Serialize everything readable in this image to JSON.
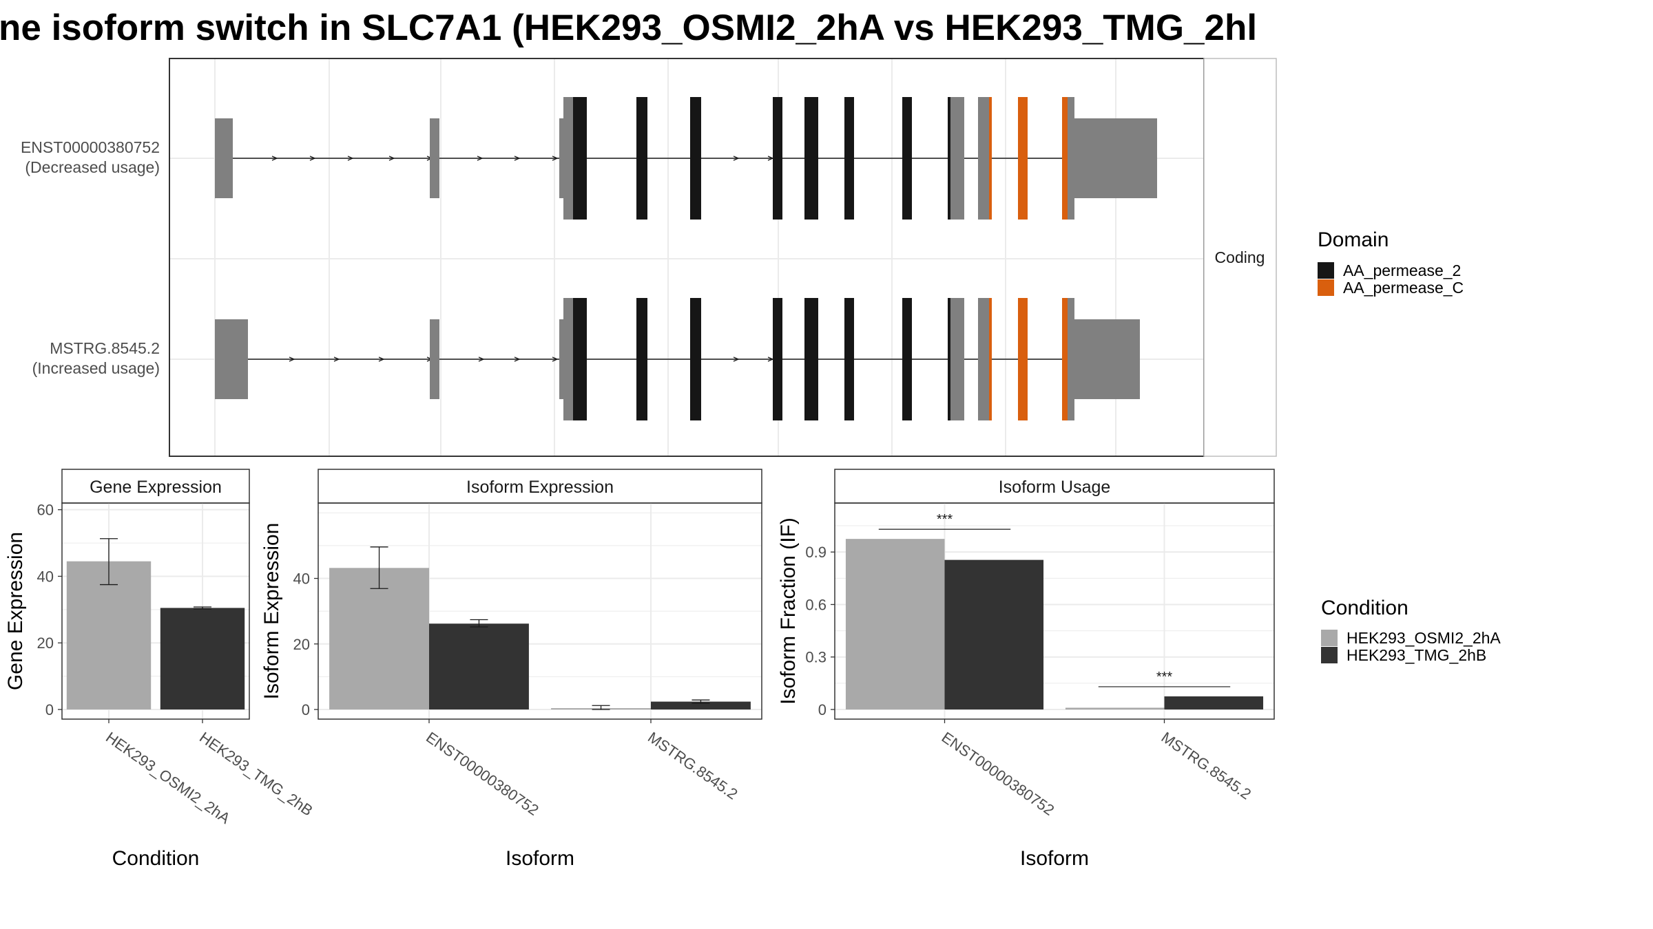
{
  "title": "ne isoform switch in SLC7A1 (HEK293_OSMI2_2hA vs HEK293_TMG_2hl",
  "colors": {
    "AA_permease_2": "#161616",
    "AA_permease_C": "#d95f0e",
    "utr": "#808080",
    "cond_A": "#a9a9a9",
    "cond_B": "#333333",
    "grid": "#ebebeb",
    "frame": "#333333"
  },
  "structure": {
    "strip_label": "Coding",
    "isoforms": [
      {
        "id": "ENST00000380752",
        "usage": "(Decreased usage)"
      },
      {
        "id": "MSTRG.8545.2",
        "usage": "(Increased usage)"
      }
    ]
  },
  "domain_legend": {
    "title": "Domain",
    "items": [
      {
        "label": "AA_permease_2",
        "color": "#161616"
      },
      {
        "label": "AA_permease_C",
        "color": "#d95f0e"
      }
    ]
  },
  "condition_legend": {
    "title": "Condition",
    "items": [
      {
        "label": "HEK293_OSMI2_2hA",
        "color": "#a9a9a9"
      },
      {
        "label": "HEK293_TMG_2hB",
        "color": "#333333"
      }
    ]
  },
  "chart_data": [
    {
      "type": "bar",
      "title": "Gene Expression",
      "xlabel": "Condition",
      "ylabel": "Gene Expression",
      "ylim": [
        0,
        62
      ],
      "yticks": [
        0,
        20,
        40,
        60
      ],
      "categories": [
        "HEK293_OSMI2_2hA",
        "HEK293_TMG_2hB"
      ],
      "values": [
        44.5,
        30.5
      ],
      "errors": [
        [
          37.5,
          51.3
        ],
        [
          30.2,
          30.8
        ]
      ],
      "grid": true
    },
    {
      "type": "bar",
      "title": "Isoform Expression",
      "xlabel": "Isoform",
      "ylabel": "Isoform Expression",
      "ylim": [
        0,
        63
      ],
      "yticks": [
        0,
        20,
        40
      ],
      "categories": [
        "ENST00000380752",
        "MSTRG.8545.2"
      ],
      "series": [
        {
          "name": "HEK293_OSMI2_2hA",
          "values": [
            43.2,
            0.4
          ],
          "errors": [
            [
              36.9,
              49.6
            ],
            [
              0.0,
              1.2
            ]
          ]
        },
        {
          "name": "HEK293_TMG_2hB",
          "values": [
            26.2,
            2.4
          ],
          "errors": [
            [
              25.2,
              27.4
            ],
            [
              1.9,
              2.9
            ]
          ]
        }
      ],
      "grid": true
    },
    {
      "type": "bar",
      "title": "Isoform Usage",
      "xlabel": "Isoform",
      "ylabel": "Isoform Fraction (IF)",
      "ylim": [
        0,
        1.18
      ],
      "yticks": [
        0.0,
        0.3,
        0.6,
        0.9
      ],
      "categories": [
        "ENST00000380752",
        "MSTRG.8545.2"
      ],
      "series": [
        {
          "name": "HEK293_OSMI2_2hA",
          "values": [
            0.975,
            0.01
          ]
        },
        {
          "name": "HEK293_TMG_2hB",
          "values": [
            0.855,
            0.075
          ]
        }
      ],
      "significance": [
        "***",
        "***"
      ],
      "grid": true
    }
  ]
}
